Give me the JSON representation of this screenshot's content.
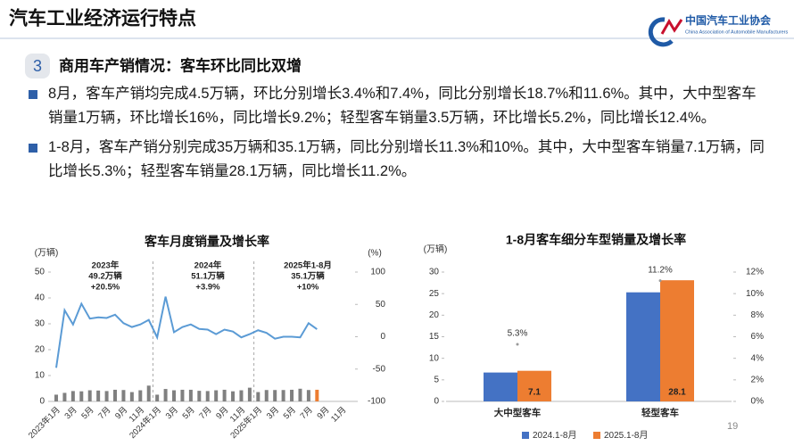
{
  "header": {
    "title": "汽车工业经济运行特点",
    "logo_name": "中国汽车工业协会",
    "logo_english": "China Association of Automobile Manufacturers"
  },
  "section": {
    "number": "3",
    "title": "商用车产销情况：客车环比同比双增"
  },
  "bullets": [
    "8月，客车产销均完成4.5万辆，环比分别增长3.4%和7.4%，同比分别增长18.7%和11.6%。其中，大中型客车销量1万辆，环比增长16%，同比增长9.2%；轻型客车销量3.5万辆，环比增长5.2%，同比增长12.4%。",
    "1-8月，客车产销分别完成35万辆和35.1万辆，同比分别增长11.3%和10%。其中，大中型客车销量7.1万辆，同比增长5.3%；轻型客车销量28.1万辆，同比增长11.2%。"
  ],
  "page_number": "19",
  "chart_data": [
    {
      "type": "combo",
      "title": "客车月度销量及增长率",
      "y_label": "(万辆)",
      "y2_label": "(%)",
      "categories": [
        "2023年1月",
        null,
        "3月",
        null,
        "5月",
        null,
        "7月",
        null,
        "9月",
        null,
        "11月",
        null,
        "2024年1月",
        null,
        "3月",
        null,
        "5月",
        null,
        "7月",
        null,
        "9月",
        null,
        "11月",
        null,
        "2025年1月",
        null,
        "3月",
        null,
        "5月",
        null,
        "7月",
        null,
        "9月",
        null,
        "11月",
        null
      ],
      "ylim": [
        0,
        50
      ],
      "yticks": [
        0,
        10,
        20,
        30,
        40,
        50
      ],
      "y2lim": [
        -100,
        100
      ],
      "y2ticks": [
        -100,
        -50,
        0,
        50,
        100
      ],
      "series": [
        {
          "type": "bar",
          "color": "#808080",
          "colors": [
            "#808080",
            "#808080",
            "#808080",
            "#808080",
            "#808080",
            "#808080",
            "#808080",
            "#808080",
            "#808080",
            "#808080",
            "#808080",
            "#808080",
            "#808080",
            "#808080",
            "#808080",
            "#808080",
            "#808080",
            "#808080",
            "#808080",
            "#808080",
            "#808080",
            "#808080",
            "#808080",
            "#808080",
            "#808080",
            "#808080",
            "#808080",
            "#808080",
            "#808080",
            "#808080",
            "#808080",
            "#ed7d31",
            null,
            null,
            null,
            null
          ],
          "values": [
            2.6,
            3.3,
            4.0,
            3.9,
            4.3,
            4.2,
            4.0,
            4.5,
            4.4,
            3.6,
            4.3,
            6.1,
            2.6,
            4.8,
            4.3,
            4.5,
            4.5,
            4.1,
            4.0,
            4.3,
            4.5,
            3.9,
            4.3,
            5.3,
            3.6,
            4.4,
            4.4,
            4.4,
            4.5,
            4.9,
            4.4,
            4.5,
            null,
            null,
            null,
            null
          ]
        },
        {
          "type": "line",
          "axis": "y2",
          "color": "#5b9bd5",
          "values": [
            -48,
            41,
            19,
            51,
            28,
            30,
            29,
            34,
            21,
            15,
            19,
            26,
            -1,
            62,
            7,
            15,
            19,
            12,
            11,
            4,
            11,
            8,
            -1,
            4,
            10,
            6,
            -3,
            0,
            0,
            -1,
            21,
            11.6,
            null,
            null,
            null,
            null
          ]
        }
      ],
      "annotations": [
        [
          "2023年",
          "49.2万辆",
          "+20.5%"
        ],
        [
          "2024年",
          "51.1万辆",
          "+3.9%"
        ],
        [
          "2025年1-8月",
          "35.1万辆",
          "+10%"
        ]
      ]
    },
    {
      "type": "bar",
      "title": "1-8月客车细分车型销量及增长率",
      "y_label": "(万辆)",
      "categories": [
        "大中型客车",
        "轻型客车"
      ],
      "ylim": [
        0,
        30
      ],
      "yticks": [
        0,
        5,
        10,
        15,
        20,
        25,
        30
      ],
      "y2lim": [
        0,
        12
      ],
      "y2ticks": [
        {
          "value": 0,
          "label": "0%"
        },
        {
          "value": 2,
          "label": "2%"
        },
        {
          "value": 4,
          "label": "4%"
        },
        {
          "value": 6,
          "label": "6%"
        },
        {
          "value": 8,
          "label": "8%"
        },
        {
          "value": 10,
          "label": "10%"
        },
        {
          "value": 12,
          "label": "12%"
        }
      ],
      "series": [
        {
          "name": "2024.1-8月",
          "color": "#4472c4",
          "values": [
            6.7,
            25.3
          ]
        },
        {
          "name": "2025.1-8月",
          "color": "#ed7d31",
          "values": [
            7.1,
            28.1
          ],
          "show_labels": true
        },
        {
          "type": "label",
          "axis": "y2",
          "values": [
            5.3,
            11.2
          ],
          "value_labels": [
            "5.3%",
            "11.2%"
          ]
        }
      ],
      "legend": "bottom"
    }
  ]
}
